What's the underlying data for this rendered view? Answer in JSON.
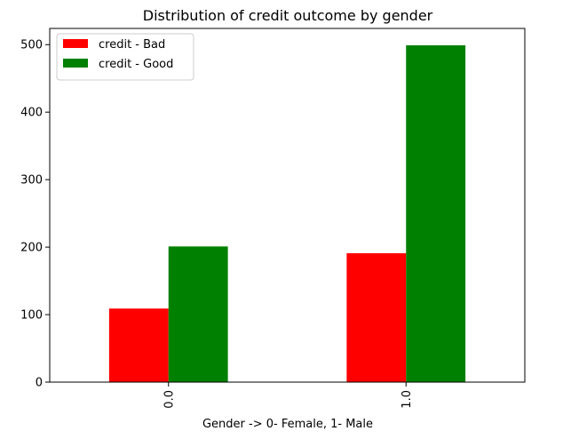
{
  "chart_data": {
    "type": "bar",
    "title": "Distribution of credit outcome by gender",
    "xlabel": "Gender -> 0- Female, 1- Male",
    "ylabel": "",
    "categories": [
      "0.0",
      "1.0"
    ],
    "series": [
      {
        "name": "credit - Bad",
        "values": [
          109,
          191
        ],
        "color": "#ff0000"
      },
      {
        "name": "credit - Good",
        "values": [
          201,
          499
        ],
        "color": "#008000"
      }
    ],
    "ylim": [
      0,
      524
    ],
    "yticks": [
      0,
      100,
      200,
      300,
      400,
      500
    ],
    "grid": false,
    "legend_position": "top-left"
  }
}
